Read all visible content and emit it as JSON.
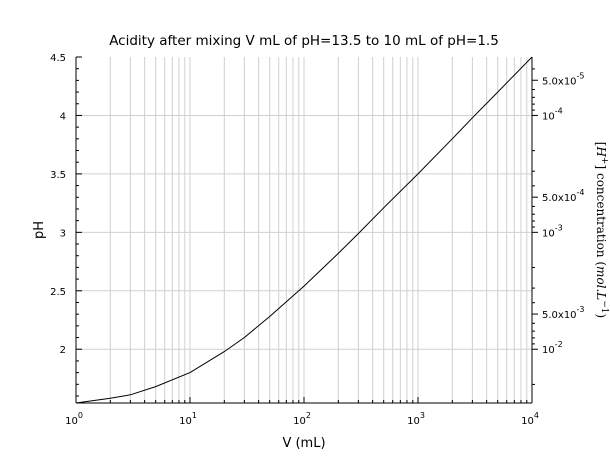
{
  "chart_data": {
    "type": "line",
    "title": "Acidity after mixing V mL of pH=13.5 to 10 mL of pH=1.5",
    "xlabel": "V (mL)",
    "ylabel": "pH",
    "y2label": "[H+] concentration (mol.L-1)",
    "y2label_parts": {
      "bracket_open": "[",
      "species": "H",
      "charge": "+",
      "bracket_close": "]",
      "word": " concentration ",
      "unit_open": "(",
      "unit": "mol.L",
      "unit_exp": "−1",
      "unit_close": ")"
    },
    "xscale": "log",
    "xlim": [
      1,
      10000
    ],
    "ylim": [
      1.54,
      4.5
    ],
    "grid": true,
    "x_ticks": [
      {
        "base": "10",
        "exp": "0",
        "value": 1
      },
      {
        "base": "10",
        "exp": "1",
        "value": 10
      },
      {
        "base": "10",
        "exp": "2",
        "value": 100
      },
      {
        "base": "10",
        "exp": "3",
        "value": 1000
      },
      {
        "base": "10",
        "exp": "4",
        "value": 10000
      }
    ],
    "y_ticks": [
      {
        "label": "2",
        "value": 2
      },
      {
        "label": "2.5",
        "value": 2.5
      },
      {
        "label": "3",
        "value": 3
      },
      {
        "label": "3.5",
        "value": 3.5
      },
      {
        "label": "4",
        "value": 4
      },
      {
        "label": "4.5",
        "value": 4.5
      }
    ],
    "y2_ticks": [
      {
        "base": "5.0x10",
        "exp": "-5",
        "value": 5e-05
      },
      {
        "base": "10",
        "exp": "-4",
        "value": 0.0001
      },
      {
        "base": "5.0x10",
        "exp": "-4",
        "value": 0.0005
      },
      {
        "base": "10",
        "exp": "-3",
        "value": 0.001
      },
      {
        "base": "5.0x10",
        "exp": "-3",
        "value": 0.005
      },
      {
        "base": "10",
        "exp": "-2",
        "value": 0.01
      }
    ],
    "series": [
      {
        "color": "#000000",
        "x": [
          1,
          2,
          3,
          5,
          10,
          20,
          30,
          50,
          100,
          200,
          300,
          500,
          1000,
          2000,
          3000,
          5000,
          10000
        ],
        "y": [
          1.54,
          1.58,
          1.61,
          1.68,
          1.8,
          1.98,
          2.1,
          2.28,
          2.54,
          2.82,
          2.99,
          3.21,
          3.5,
          3.8,
          3.98,
          4.2,
          4.5
        ]
      }
    ]
  }
}
